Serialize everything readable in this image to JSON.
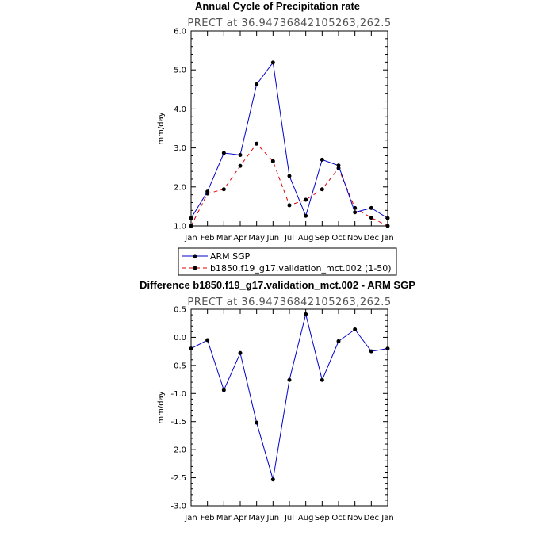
{
  "chart_data": [
    {
      "type": "line",
      "title": "Annual Cycle of Precipitation rate",
      "subtitle": "PRECT at 36.94736842105263,262.5",
      "ylabel": "mm/day",
      "ylim": [
        1.0,
        6.0
      ],
      "yticks": [
        "1.0",
        "2.0",
        "3.0",
        "4.0",
        "5.0",
        "6.0"
      ],
      "categories": [
        "Jan",
        "Feb",
        "Mar",
        "Apr",
        "May",
        "Jun",
        "Jul",
        "Aug",
        "Sep",
        "Oct",
        "Nov",
        "Dec",
        "Jan"
      ],
      "series": [
        {
          "name": "ARM SGP",
          "color": "#0000cc",
          "dash": "solid",
          "values": [
            1.2,
            1.88,
            2.87,
            2.82,
            4.63,
            5.19,
            2.28,
            1.26,
            2.7,
            2.55,
            1.35,
            1.46,
            1.2
          ]
        },
        {
          "name": "b1850.f19_g17.validation_mct.002 (1-50)",
          "color": "#dd0000",
          "dash": "dashed",
          "values": [
            1.0,
            1.83,
            1.94,
            2.54,
            3.11,
            2.66,
            1.53,
            1.67,
            1.94,
            2.48,
            1.46,
            1.21,
            1.0
          ]
        }
      ],
      "legend": "bottom"
    },
    {
      "type": "line",
      "title": "Difference b1850.f19_g17.validation_mct.002 - ARM SGP",
      "subtitle": "PRECT at 36.94736842105263,262.5",
      "ylabel": "mm/day",
      "ylim": [
        -3.0,
        0.5
      ],
      "yticks": [
        "-3.0",
        "-2.5",
        "-2.0",
        "-1.5",
        "-1.0",
        "-0.5",
        "0.0",
        "0.5"
      ],
      "categories": [
        "Jan",
        "Feb",
        "Mar",
        "Apr",
        "May",
        "Jun",
        "Jul",
        "Aug",
        "Sep",
        "Oct",
        "Nov",
        "Dec",
        "Jan"
      ],
      "series": [
        {
          "color": "#0000cc",
          "dash": "solid",
          "values": [
            -0.2,
            -0.05,
            -0.94,
            -0.28,
            -1.52,
            -2.53,
            -0.76,
            0.41,
            -0.76,
            -0.07,
            0.14,
            -0.25,
            -0.2
          ]
        }
      ]
    }
  ]
}
